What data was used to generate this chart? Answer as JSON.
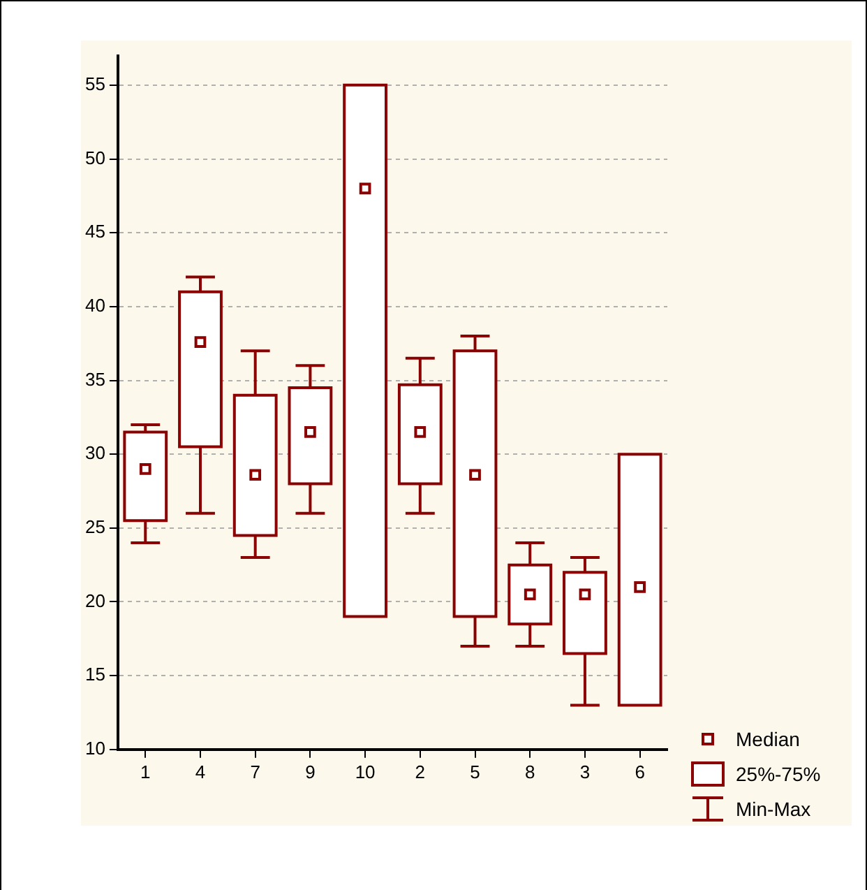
{
  "chart_data": {
    "type": "box",
    "categories": [
      "1",
      "4",
      "7",
      "9",
      "10",
      "2",
      "5",
      "8",
      "3",
      "6"
    ],
    "series": [
      {
        "color": "#8b0000",
        "boxes": [
          {
            "low": 24,
            "q1": 25.5,
            "median": 29,
            "q3": 31.5,
            "high": 32
          },
          {
            "low": 26,
            "q1": 30.5,
            "median": 37.6,
            "q3": 41,
            "high": 42
          },
          {
            "low": 23,
            "q1": 24.5,
            "median": 28.6,
            "q3": 34,
            "high": 37
          },
          {
            "low": 26,
            "q1": 28,
            "median": 31.5,
            "q3": 34.5,
            "high": 36
          },
          {
            "low": 19,
            "q1": 19,
            "median": 48,
            "q3": 55,
            "high": 55
          },
          {
            "low": 26,
            "q1": 28,
            "median": 31.5,
            "q3": 34.7,
            "high": 36.5
          },
          {
            "low": 17,
            "q1": 19,
            "median": 28.6,
            "q3": 37,
            "high": 38
          },
          {
            "low": 17,
            "q1": 18.5,
            "median": 20.5,
            "q3": 22.5,
            "high": 24
          },
          {
            "low": 13,
            "q1": 16.5,
            "median": 20.5,
            "q3": 22,
            "high": 23
          },
          {
            "low": 13,
            "q1": 13,
            "median": 21,
            "q3": 30,
            "high": 30
          }
        ]
      }
    ],
    "ylim": [
      10,
      57
    ],
    "yticks": [
      10,
      15,
      20,
      25,
      30,
      35,
      40,
      45,
      50,
      55
    ],
    "grid": "y",
    "marker": "square",
    "annotations": [
      "Median",
      "25%-75%",
      "Min-Max"
    ]
  }
}
